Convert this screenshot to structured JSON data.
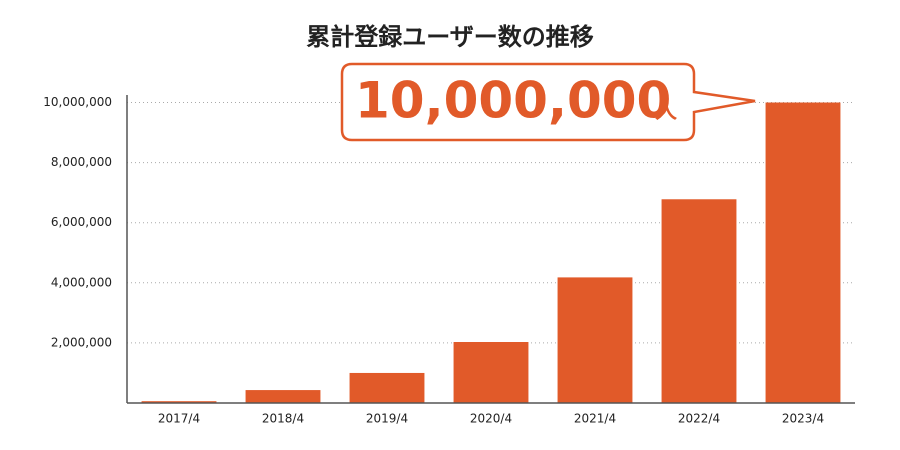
{
  "chart_data": {
    "type": "bar",
    "title": "累計登録ユーザー数の推移",
    "categories": [
      "2017/4",
      "2018/4",
      "2019/4",
      "2020/4",
      "2021/4",
      "2022/4",
      "2023/4"
    ],
    "values": [
      60000,
      430000,
      1000000,
      2030000,
      4180000,
      6780000,
      10000000
    ],
    "color": "#e15a29",
    "ylim": [
      0,
      10250000
    ],
    "yticks": [
      {
        "value": 2000000,
        "label": "2,000,000"
      },
      {
        "value": 4000000,
        "label": "4,000,000"
      },
      {
        "value": 6000000,
        "label": "6,000,000"
      },
      {
        "value": 8000000,
        "label": "8,000,000"
      },
      {
        "value": 10000000,
        "label": "10,000,000"
      }
    ],
    "grid": true,
    "annotation": {
      "text": "10,000,000",
      "unit": "人"
    }
  }
}
